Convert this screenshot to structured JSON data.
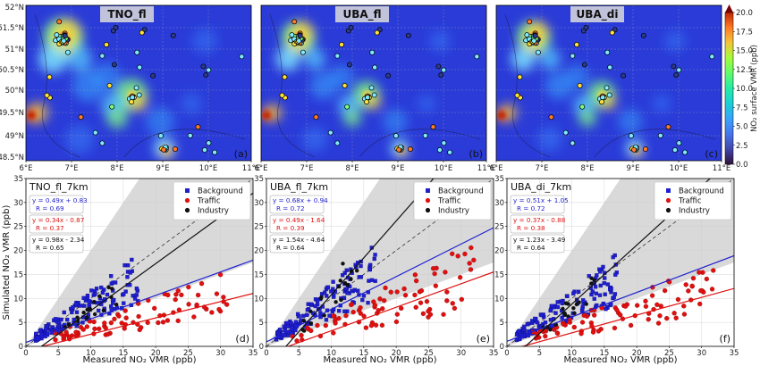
{
  "colorbar": {
    "label": "NO₂ surface VMR (ppb)",
    "ticks": [
      "0.0",
      "2.5",
      "5.0",
      "7.5",
      "10.0",
      "12.5",
      "15.0",
      "17.5",
      "20.0"
    ],
    "min": 0,
    "max": 20
  },
  "maps": {
    "lat_ticks": [
      "52°N",
      "51.5°N",
      "51°N",
      "50.5°N",
      "50°N",
      "49.5°N",
      "49°N",
      "48.5°N"
    ],
    "lon_ticks": [
      "6°E",
      "7°E",
      "8°E",
      "9°E",
      "10°E",
      "11°E"
    ],
    "panels": [
      {
        "title": "TNO_fl",
        "letter": "(a)"
      },
      {
        "title": "UBA_fl",
        "letter": "(b)"
      },
      {
        "title": "UBA_di",
        "letter": "(c)"
      }
    ]
  },
  "scatter": {
    "xlabel": "Measured NO₂ VMR (ppb)",
    "ylabel": "Simulated NO₂ VMR (ppb)",
    "ticks": [
      "0",
      "5",
      "10",
      "15",
      "20",
      "25",
      "30",
      "35"
    ],
    "legend": [
      "Background",
      "Traffic",
      "Industry"
    ],
    "colors": {
      "Background": "#1f1fd0",
      "Traffic": "#e01010",
      "Industry": "#111111"
    }
  },
  "chart_data": [
    {
      "type": "heatmap",
      "title": "TNO_fl",
      "panel": "(a)",
      "xlim": [
        6,
        11
      ],
      "ylim": [
        48.4,
        52
      ]
    },
    {
      "type": "heatmap",
      "title": "UBA_fl",
      "panel": "(b)",
      "xlim": [
        6,
        11
      ],
      "ylim": [
        48.4,
        52
      ]
    },
    {
      "type": "heatmap",
      "title": "UBA_di",
      "panel": "(c)",
      "xlim": [
        6,
        11
      ],
      "ylim": [
        48.4,
        52
      ]
    },
    {
      "type": "scatter",
      "title": "TNO_fl_7km",
      "panel": "(d)",
      "xlim": [
        0,
        35
      ],
      "ylim": [
        0,
        35
      ],
      "fits": [
        {
          "series": "Background",
          "equation": "y = 0.49x + 0.83",
          "R": "R = 0.69",
          "slope": 0.49,
          "intercept": 0.83
        },
        {
          "series": "Traffic",
          "equation": "y = 0.34x - 0.87",
          "R": "R = 0.37",
          "slope": 0.34,
          "intercept": -0.87
        },
        {
          "series": "Industry",
          "equation": "y = 0.98x - 2.34",
          "R": "R = 0.65",
          "slope": 0.98,
          "intercept": -2.34
        }
      ]
    },
    {
      "type": "scatter",
      "title": "UBA_fl_7km",
      "panel": "(e)",
      "xlim": [
        0,
        35
      ],
      "ylim": [
        0,
        35
      ],
      "fits": [
        {
          "series": "Background",
          "equation": "y = 0.68x + 0.94",
          "R": "R = 0.72",
          "slope": 0.68,
          "intercept": 0.94
        },
        {
          "series": "Traffic",
          "equation": "y = 0.49x - 1.64",
          "R": "R = 0.39",
          "slope": 0.49,
          "intercept": -1.64
        },
        {
          "series": "Industry",
          "equation": "y = 1.54x - 4.64",
          "R": "R = 0.64",
          "slope": 1.54,
          "intercept": -4.64
        }
      ]
    },
    {
      "type": "scatter",
      "title": "UBA_di_7km",
      "panel": "(f)",
      "xlim": [
        0,
        35
      ],
      "ylim": [
        0,
        35
      ],
      "fits": [
        {
          "series": "Background",
          "equation": "y = 0.51x + 1.05",
          "R": "R = 0.72",
          "slope": 0.51,
          "intercept": 1.05
        },
        {
          "series": "Traffic",
          "equation": "y = 0.37x - 0.88",
          "R": "R = 0.38",
          "slope": 0.37,
          "intercept": -0.88
        },
        {
          "series": "Industry",
          "equation": "y = 1.23x - 3.49",
          "R": "R = 0.64",
          "slope": 1.23,
          "intercept": -3.49
        }
      ]
    }
  ]
}
